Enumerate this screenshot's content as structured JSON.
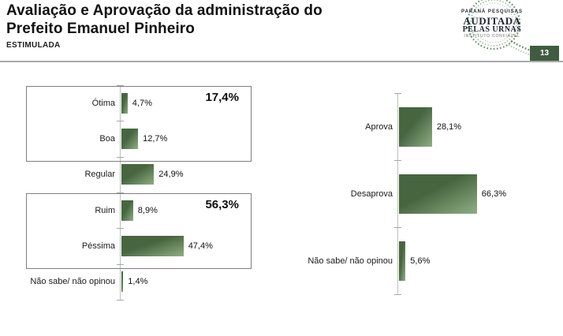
{
  "header": {
    "title_line1": "Avaliação e Aprovação da administração do",
    "title_line2": "Prefeito Emanuel Pinheiro",
    "subtitle": "ESTIMULADA",
    "page_number": "13",
    "logo": {
      "line1": "PARANÁ PESQUISAS",
      "line2": "AUDITADA",
      "line3": "PELAS URNAS",
      "line4": "INSTITUTO CONFIÁVEL"
    }
  },
  "colors": {
    "bar_gradient_dark": "#47663f",
    "bar_gradient_light": "#8fae85",
    "page_badge_green": "#3f5c40",
    "logo_green": "#4d7a50",
    "divider_grey": "#a9a9a9"
  },
  "chart_data": [
    {
      "type": "bar",
      "orientation": "horizontal",
      "categories": [
        "Ótima",
        "Boa",
        "Regular",
        "Ruim",
        "Péssima",
        "Não sabe/ não opinou"
      ],
      "values": [
        4.7,
        12.7,
        24.9,
        8.9,
        47.4,
        1.4
      ],
      "value_labels": [
        "4,7%",
        "12,7%",
        "24,9%",
        "8,9%",
        "47,4%",
        "1,4%"
      ],
      "groups": [
        {
          "label": "17,4%",
          "rows": [
            0,
            1
          ]
        },
        {
          "label": "56,3%",
          "rows": [
            3,
            4
          ]
        }
      ],
      "xlim": [
        0,
        100
      ],
      "grid": false,
      "legend": false
    },
    {
      "type": "bar",
      "orientation": "horizontal",
      "categories": [
        "Aprova",
        "Desaprova",
        "Não sabe/ não opinou"
      ],
      "values": [
        28.1,
        66.3,
        5.6
      ],
      "value_labels": [
        "28,1%",
        "66,3%",
        "5,6%"
      ],
      "xlim": [
        0,
        100
      ],
      "grid": false,
      "legend": false
    }
  ]
}
